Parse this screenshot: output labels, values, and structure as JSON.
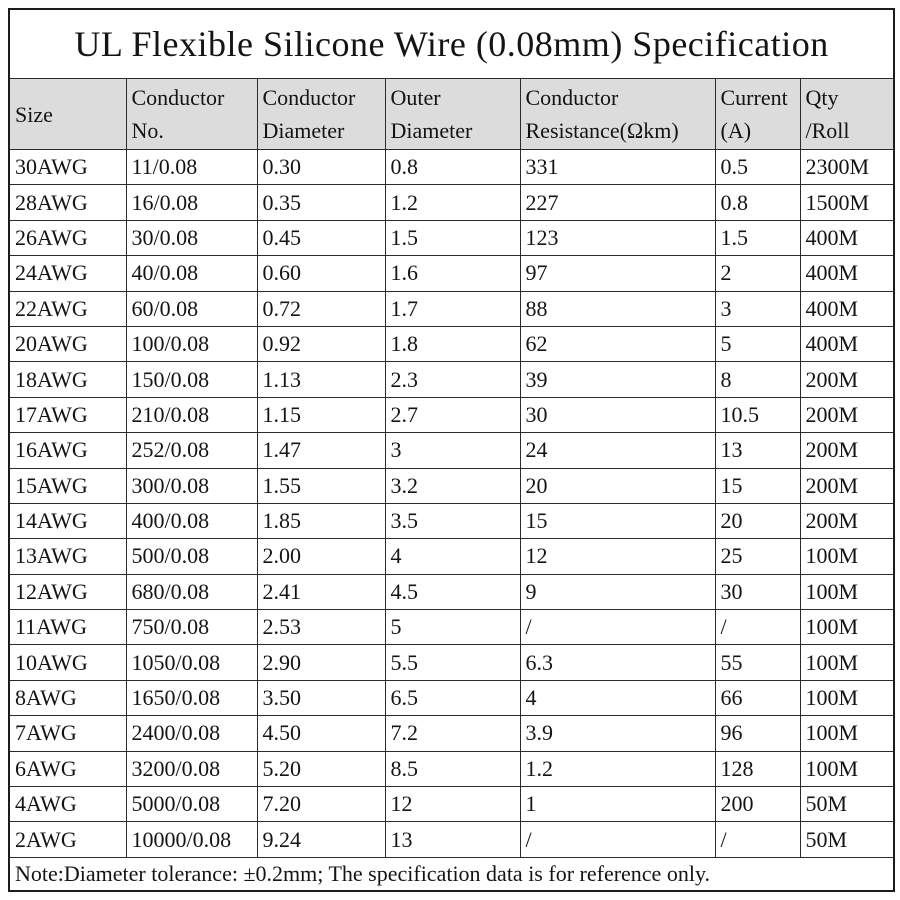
{
  "title": "UL Flexible Silicone Wire (0.08mm) Specification",
  "table": {
    "columns": [
      "Size",
      "Conductor\nNo.",
      "Conductor\nDiameter",
      "Outer\nDiameter",
      "Conductor\nResistance(Ωkm)",
      "Current\n(A)",
      "Qty\n/Roll"
    ],
    "column_names": [
      "size",
      "conductor-no",
      "conductor-diameter",
      "outer-diameter",
      "conductor-resistance",
      "current",
      "qty-roll"
    ],
    "rows": [
      [
        "30AWG",
        "11/0.08",
        "0.30",
        "0.8",
        "331",
        "0.5",
        "2300M"
      ],
      [
        "28AWG",
        "16/0.08",
        "0.35",
        "1.2",
        "227",
        "0.8",
        "1500M"
      ],
      [
        "26AWG",
        "30/0.08",
        "0.45",
        "1.5",
        "123",
        "1.5",
        "400M"
      ],
      [
        "24AWG",
        "40/0.08",
        "0.60",
        "1.6",
        "97",
        "2",
        "400M"
      ],
      [
        "22AWG",
        "60/0.08",
        "0.72",
        "1.7",
        "88",
        "3",
        "400M"
      ],
      [
        "20AWG",
        "100/0.08",
        "0.92",
        "1.8",
        "62",
        "5",
        "400M"
      ],
      [
        "18AWG",
        "150/0.08",
        "1.13",
        "2.3",
        "39",
        "8",
        "200M"
      ],
      [
        "17AWG",
        "210/0.08",
        "1.15",
        "2.7",
        "30",
        "10.5",
        "200M"
      ],
      [
        "16AWG",
        "252/0.08",
        "1.47",
        "3",
        "24",
        "13",
        "200M"
      ],
      [
        "15AWG",
        "300/0.08",
        "1.55",
        "3.2",
        "20",
        "15",
        "200M"
      ],
      [
        "14AWG",
        "400/0.08",
        "1.85",
        "3.5",
        "15",
        "20",
        "200M"
      ],
      [
        "13AWG",
        "500/0.08",
        "2.00",
        "4",
        "12",
        "25",
        "100M"
      ],
      [
        "12AWG",
        "680/0.08",
        "2.41",
        "4.5",
        "9",
        "30",
        "100M"
      ],
      [
        "11AWG",
        "750/0.08",
        "2.53",
        "5",
        "/",
        "/",
        "100M"
      ],
      [
        "10AWG",
        "1050/0.08",
        "2.90",
        "5.5",
        "6.3",
        "55",
        "100M"
      ],
      [
        "8AWG",
        "1650/0.08",
        "3.50",
        "6.5",
        "4",
        "66",
        "100M"
      ],
      [
        "7AWG",
        "2400/0.08",
        "4.50",
        "7.2",
        "3.9",
        "96",
        "100M"
      ],
      [
        "6AWG",
        "3200/0.08",
        "5.20",
        "8.5",
        "1.2",
        "128",
        "100M"
      ],
      [
        "4AWG",
        "5000/0.08",
        "7.20",
        "12",
        "1",
        "200",
        "50M"
      ],
      [
        "2AWG",
        "10000/0.08",
        "9.24",
        "13",
        "/",
        "/",
        "50M"
      ]
    ],
    "note": "Note:Diameter tolerance: ±0.2mm; The specification data is for reference only."
  },
  "colors": {
    "header_bg": "#dcdcdc",
    "border": "#2b2b2b",
    "outer_border": "#1c1c1c",
    "page_bg": "#ffffff",
    "text": "#141414"
  }
}
